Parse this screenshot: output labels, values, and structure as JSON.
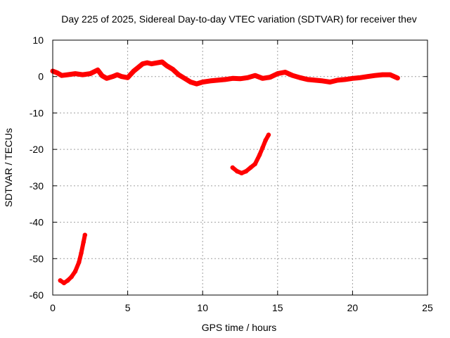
{
  "chart_data": {
    "type": "line",
    "title": "Day 225 of 2025, Sidereal Day-to-day VTEC variation (SDTVAR) for receiver thev",
    "xlabel": "GPS time / hours",
    "ylabel": "SDTVAR / TECUs",
    "xlim": [
      0,
      25
    ],
    "ylim": [
      -60,
      10
    ],
    "x_ticks": [
      0,
      5,
      10,
      15,
      20,
      25
    ],
    "y_ticks": [
      10,
      0,
      -10,
      -20,
      -30,
      -40,
      -50,
      -60
    ],
    "grid": true,
    "series_color": "#ff0000",
    "series": [
      {
        "name": "main band",
        "x": [
          0.0,
          0.3,
          0.6,
          1.0,
          1.5,
          2.0,
          2.5,
          3.0,
          3.3,
          3.6,
          4.0,
          4.3,
          4.6,
          5.0,
          5.4,
          5.7,
          6.0,
          6.3,
          6.6,
          7.0,
          7.3,
          7.6,
          8.0,
          8.4,
          8.8,
          9.2,
          9.6,
          10.0,
          10.5,
          11.0,
          11.5,
          12.0,
          12.5,
          13.0,
          13.5,
          14.0,
          14.5,
          15.0,
          15.5,
          16.0,
          16.5,
          17.0,
          17.5,
          18.0,
          18.5,
          19.0,
          19.5,
          20.0,
          20.5,
          21.0,
          21.5,
          22.0,
          22.5,
          23.0
        ],
        "values": [
          1.5,
          1.0,
          0.3,
          0.5,
          0.8,
          0.5,
          0.8,
          1.8,
          0.2,
          -0.5,
          0.0,
          0.5,
          0.0,
          -0.3,
          1.5,
          2.5,
          3.5,
          3.8,
          3.5,
          3.8,
          4.0,
          3.0,
          2.0,
          0.5,
          -0.5,
          -1.5,
          -2.0,
          -1.5,
          -1.2,
          -1.0,
          -0.8,
          -0.5,
          -0.6,
          -0.3,
          0.3,
          -0.5,
          -0.2,
          0.8,
          1.2,
          0.3,
          -0.3,
          -0.8,
          -1.0,
          -1.2,
          -1.5,
          -1.0,
          -0.8,
          -0.5,
          -0.3,
          0.0,
          0.3,
          0.5,
          0.5,
          -0.4
        ]
      },
      {
        "name": "segment 2",
        "x": [
          12.0,
          12.3,
          12.6,
          12.9,
          13.2,
          13.5,
          13.8,
          14.0,
          14.2,
          14.4
        ],
        "values": [
          -25.0,
          -26.0,
          -26.5,
          -26.0,
          -25.0,
          -24.0,
          -21.5,
          -19.5,
          -17.5,
          -16.0
        ]
      },
      {
        "name": "segment 3",
        "x": [
          0.5,
          0.75,
          1.0,
          1.25,
          1.5,
          1.75,
          1.9,
          2.05,
          2.15
        ],
        "values": [
          -56.0,
          -56.7,
          -56.0,
          -55.0,
          -53.5,
          -51.0,
          -48.5,
          -45.5,
          -43.5
        ]
      }
    ]
  }
}
